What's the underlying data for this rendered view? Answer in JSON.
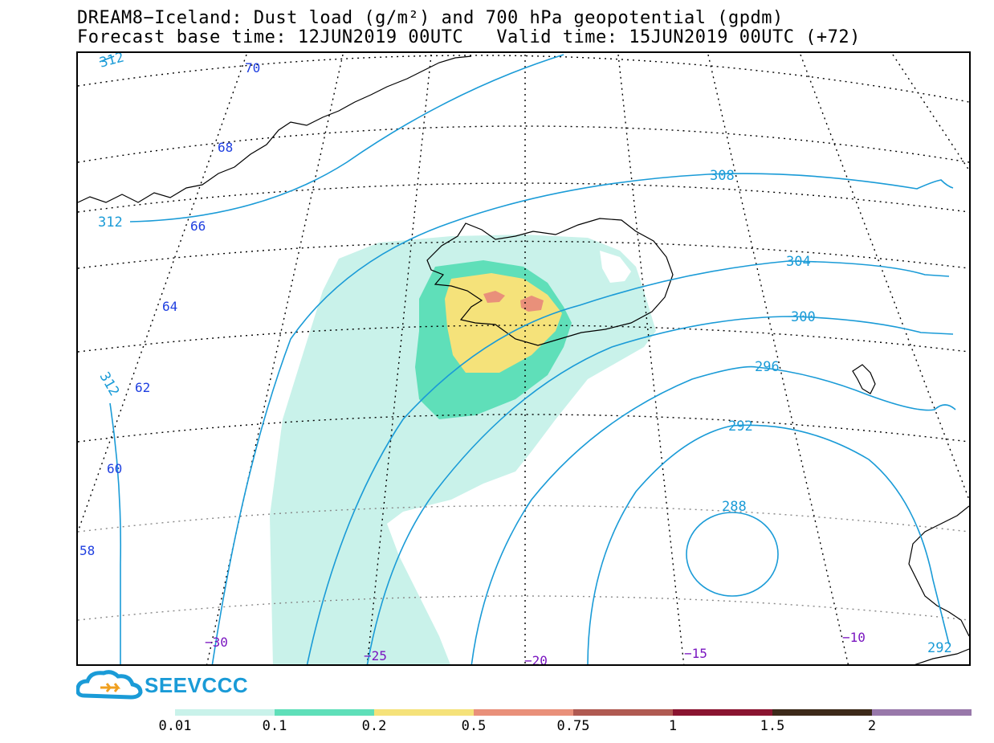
{
  "title": {
    "line1": "DREAM8−Iceland: Dust load (g/m²) and 700 hPa geopotential (gpdm)",
    "line2": "Forecast base time: 12JUN2019 00UTC   Valid time: 15JUN2019 00UTC (+72)"
  },
  "logo": {
    "text": "SEEVCCC",
    "icon": "cloud-arrow-icon"
  },
  "colors": {
    "geopotential": "#1a9bd7",
    "lat_label": "#1f3fe0",
    "lon_label": "#7a16c0"
  },
  "colorbar": {
    "colors": [
      "#c9f2ea",
      "#5fdfb9",
      "#f5e27a",
      "#e9907a",
      "#b05a52",
      "#8a1430",
      "#3d2a1a",
      "#9878aa"
    ],
    "labels": [
      "0.01",
      "0.1",
      "0.2",
      "0.5",
      "0.75",
      "1",
      "1.5",
      "2"
    ]
  },
  "map": {
    "geopotential_labels": [
      "312",
      "312",
      "312",
      "308",
      "304",
      "300",
      "296",
      "292",
      "288",
      "292"
    ],
    "lat_labels": [
      "70",
      "68",
      "66",
      "64",
      "62",
      "60",
      "58"
    ],
    "lon_labels": [
      "−30",
      "−25",
      "−20",
      "−15",
      "−10"
    ],
    "dust_levels": [
      "0.01",
      "0.1",
      "0.2",
      "0.5"
    ]
  }
}
